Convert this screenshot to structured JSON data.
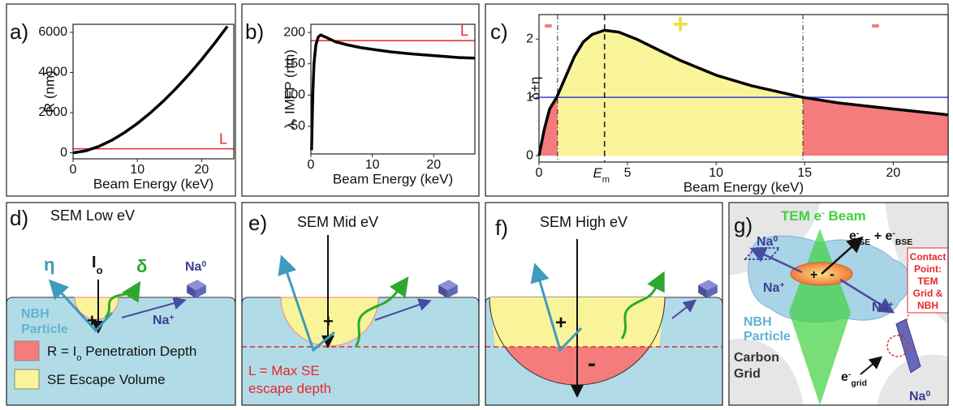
{
  "chart_data": [
    {
      "type": "line",
      "panel_label": "a)",
      "xlabel": "Beam Energy (keV)",
      "ylabel": "R (nm)",
      "x": [
        0,
        2,
        4,
        6,
        8,
        10,
        12,
        14,
        16,
        18,
        20,
        22,
        24
      ],
      "series": [
        {
          "color": "#000000",
          "values": [
            0,
            99,
            316,
            621,
            1006,
            1460,
            1979,
            2562,
            3198,
            3894,
            4646,
            5445,
            6300
          ]
        }
      ],
      "xlim": [
        0,
        25
      ],
      "ylim": [
        -300,
        6400
      ],
      "xticks": [
        0,
        10,
        20
      ],
      "yticks": [
        0,
        2000,
        4000,
        6000
      ],
      "hline": {
        "value": 200,
        "label": "L",
        "color": "#e8262a"
      }
    },
    {
      "type": "line",
      "panel_label": "b)",
      "xlabel": "Beam Energy (keV)",
      "ylabel": "λ, IMFP (nm)",
      "x": [
        0.1,
        0.3,
        0.5,
        0.8,
        1.2,
        1.6,
        2.5,
        4,
        6,
        8,
        10,
        13,
        16,
        20,
        24,
        26.7
      ],
      "series": [
        {
          "color": "#000000",
          "values": [
            12,
            100,
            150,
            180,
            193,
            196,
            192,
            185,
            180,
            176,
            173,
            169,
            166,
            163,
            160,
            159
          ]
        }
      ],
      "xlim": [
        0,
        26.7
      ],
      "ylim": [
        6,
        213
      ],
      "xticks": [
        0,
        10,
        20
      ],
      "yticks": [
        50,
        100,
        150,
        200
      ],
      "hline": {
        "value": 187,
        "label": "L",
        "color": "#e8262a"
      }
    },
    {
      "type": "area",
      "panel_label": "c)",
      "xlabel": "Beam Energy (keV)",
      "ylabel": "δ+η",
      "x": [
        0,
        0.3,
        0.6,
        1,
        1.5,
        2,
        2.5,
        3,
        3.7,
        4.5,
        5.5,
        6.5,
        8,
        10,
        12,
        14.9,
        17,
        20,
        23.1
      ],
      "series": [
        {
          "color": "#000000",
          "values": [
            0,
            0.45,
            0.8,
            1.0,
            1.35,
            1.7,
            1.95,
            2.08,
            2.15,
            2.12,
            2.0,
            1.85,
            1.63,
            1.38,
            1.2,
            1.0,
            0.9,
            0.8,
            0.7
          ]
        }
      ],
      "xlim": [
        0,
        23.1
      ],
      "ylim": [
        -0.11,
        2.42
      ],
      "xticks": [
        0,
        5,
        10,
        15,
        20
      ],
      "yticks": [
        0,
        1,
        2
      ],
      "hline": {
        "value": 1,
        "color": "#3b3bd6"
      },
      "regions": [
        {
          "from": 0,
          "to": 1.05,
          "color": "#f47c7c",
          "sign": "-"
        },
        {
          "from": 1.05,
          "to": 14.9,
          "color": "#f9f49a",
          "sign": "+"
        },
        {
          "from": 14.9,
          "to": 23.1,
          "color": "#f47c7c",
          "sign": "-"
        }
      ],
      "vlines": [
        {
          "value": 1.05,
          "dash": "dashdot"
        },
        {
          "value": 3.7,
          "dash": "dashed",
          "label": [
            {
              "t": "E"
            },
            {
              "sub": "m"
            }
          ]
        },
        {
          "value": 14.9,
          "dash": "dashdot"
        }
      ]
    }
  ],
  "panels": {
    "d": {
      "label": "d)",
      "title": "SEM Low eV",
      "eta": "η",
      "beam": [
        {
          "t": "I"
        },
        {
          "sub": "o"
        }
      ],
      "delta": "δ",
      "na0": [
        {
          "t": "Na"
        },
        {
          "sup": "0"
        }
      ],
      "na_plus": [
        {
          "t": "Na"
        },
        {
          "sup": "+"
        }
      ],
      "plus": "+",
      "particle": [
        "NBH",
        "Particle"
      ],
      "legend": [
        {
          "color": "#f47c7c",
          "text": [
            {
              "t": "R = I"
            },
            {
              "sub": "o"
            },
            {
              "t": " Penetration Depth"
            }
          ]
        },
        {
          "color": "#f9f49a",
          "text": "SE Escape Volume"
        }
      ]
    },
    "e": {
      "label": "e)",
      "title": "SEM Mid eV",
      "plus": "+",
      "depth_note": [
        "L = Max SE",
        "escape depth"
      ]
    },
    "f": {
      "label": "f)",
      "title": "SEM High eV",
      "plus": "+",
      "minus": "-"
    },
    "g": {
      "label": "g)",
      "beam": [
        {
          "t": "TEM e"
        },
        {
          "sup": "-"
        },
        {
          "t": " Beam"
        }
      ],
      "na0_top": [
        {
          "t": "Na"
        },
        {
          "sup": "0"
        }
      ],
      "emission": [
        {
          "t": "e"
        },
        {
          "sup": "-"
        },
        {
          "sub": "SE"
        },
        {
          "t": " + e"
        },
        {
          "sup": "-"
        },
        {
          "sub": "BSE"
        }
      ],
      "na_plus_left": [
        {
          "t": "Na"
        },
        {
          "sup": "+"
        }
      ],
      "na_plus_right": [
        {
          "t": "Na"
        },
        {
          "sup": "+"
        }
      ],
      "plus": "+",
      "minus": "-",
      "particle": [
        "NBH",
        "Particle"
      ],
      "carbon": [
        "Carbon",
        "Grid"
      ],
      "grid_e": [
        {
          "t": "e"
        },
        {
          "sup": "-"
        },
        {
          "sub": "grid"
        }
      ],
      "na0_bottom": [
        {
          "t": "Na"
        },
        {
          "sup": "0"
        }
      ],
      "contact": [
        "Contact",
        "Point:",
        "TEM",
        "Grid &",
        "NBH"
      ]
    }
  }
}
